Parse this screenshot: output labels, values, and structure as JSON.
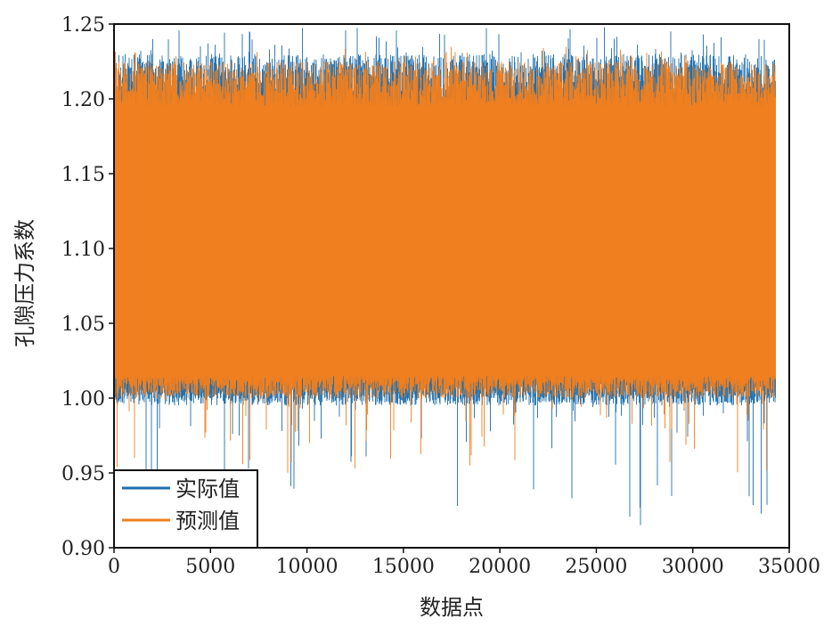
{
  "chart_data": {
    "type": "line",
    "title": "",
    "xlabel": "数据点",
    "ylabel": "孔隙压力系数",
    "xlim": [
      0,
      35000
    ],
    "ylim": [
      0.9,
      1.25
    ],
    "xticks": [
      0,
      5000,
      10000,
      15000,
      20000,
      25000,
      30000,
      35000
    ],
    "xtick_labels": [
      "0",
      "5000",
      "10000",
      "15000",
      "20000",
      "25000",
      "30000",
      "35000"
    ],
    "yticks": [
      0.9,
      0.95,
      1.0,
      1.05,
      1.1,
      1.15,
      1.2,
      1.25
    ],
    "ytick_labels": [
      "0.90",
      "0.95",
      "1.00",
      "1.05",
      "1.10",
      "1.15",
      "1.20",
      "1.25"
    ],
    "grid": false,
    "legend_position": "bottom-left",
    "n_points": 34300,
    "series": [
      {
        "name": "实际值",
        "color": "#1f6fad",
        "approx_min": 0.915,
        "approx_max": 1.248,
        "typical_band": [
          1.0,
          1.22
        ]
      },
      {
        "name": "预测值",
        "color": "#f07f1f",
        "approx_min": 0.95,
        "approx_max": 1.235,
        "typical_band": [
          1.005,
          1.215
        ]
      }
    ]
  }
}
